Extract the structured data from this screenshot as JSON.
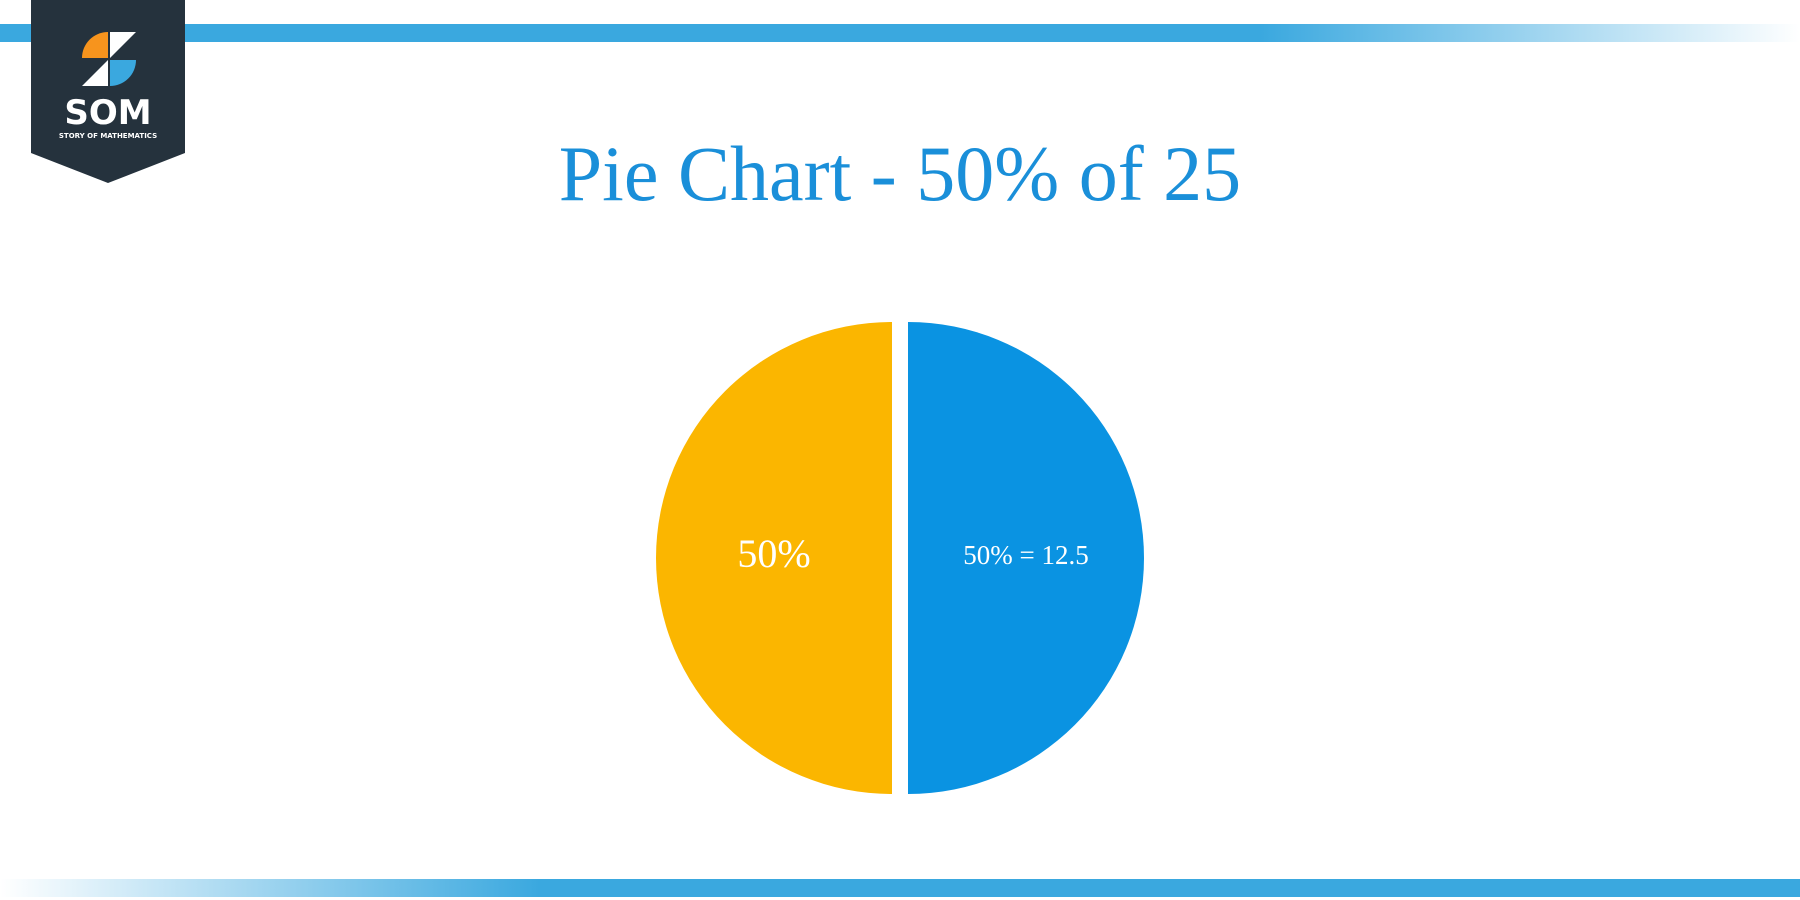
{
  "logo": {
    "text": "SOM",
    "subtitle": "STORY OF MATHEMATICS"
  },
  "chart_data": {
    "type": "pie",
    "title": "Pie Chart - 50% of 25",
    "values": [
      50,
      50
    ],
    "value_labels": [
      "50% = 12.5",
      "50%"
    ],
    "colors": [
      "#0a93e2",
      "#fbb600"
    ]
  }
}
